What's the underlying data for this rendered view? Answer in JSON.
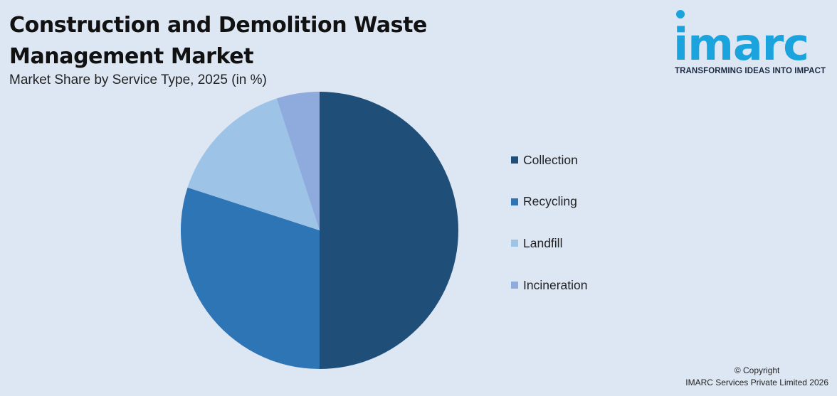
{
  "header": {
    "title": "Construction and Demolition Waste Management Market",
    "subtitle": "Market Share by Service Type, 2025 (in %)"
  },
  "logo": {
    "wordmark": "imarc",
    "tagline": "TRANSFORMING IDEAS INTO IMPACT",
    "color": "#1aa3dd"
  },
  "chart_data": {
    "type": "pie",
    "title": "Construction and Demolition Waste Management Market",
    "subtitle": "Market Share by Service Type, 2025 (in %)",
    "categories": [
      "Collection",
      "Recycling",
      "Landfill",
      "Incineration"
    ],
    "values": [
      50,
      30,
      15,
      5
    ],
    "colors": [
      "#1f4e79",
      "#2e75b6",
      "#9dc3e6",
      "#8faadc"
    ],
    "start_angle_deg": 0,
    "direction": "clockwise",
    "legend_position": "right"
  },
  "footer": {
    "copyright_line1": "© Copyright",
    "copyright_line2": "IMARC Services Private Limited 2026"
  }
}
